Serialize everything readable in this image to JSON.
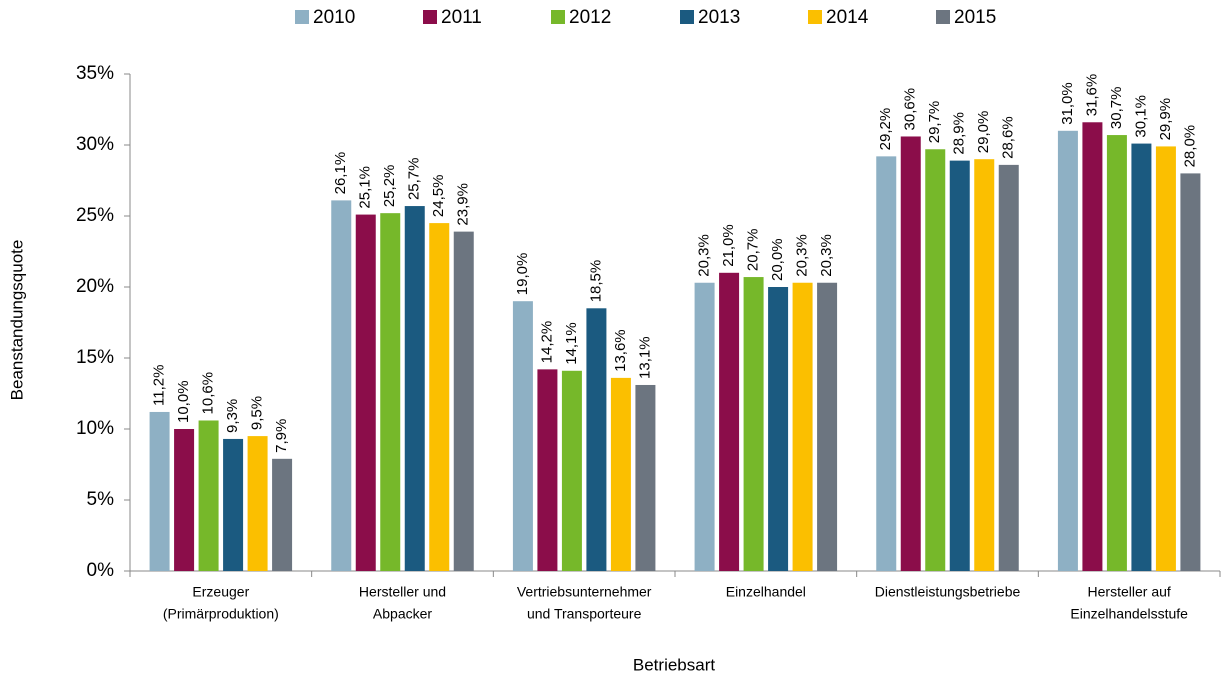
{
  "chart_data": {
    "type": "bar",
    "categories": [
      [
        "Erzeuger",
        "(Primärproduktion)"
      ],
      [
        "Hersteller und",
        "Abpacker"
      ],
      [
        "Vertriebsunternehmer",
        "und Transporteure"
      ],
      [
        "Einzelhandel"
      ],
      [
        "Dienstleistungsbetriebe"
      ],
      [
        "Hersteller auf",
        "Einzelhandelsstufe"
      ]
    ],
    "series": [
      {
        "name": "2010",
        "color": "#8eb0c4",
        "values": [
          11.2,
          26.1,
          19.0,
          20.3,
          29.2,
          31.0
        ],
        "value_labels": [
          "11,2%",
          "26,1%",
          "19,0%",
          "20,3%",
          "29,2%",
          "31,0%"
        ]
      },
      {
        "name": "2011",
        "color": "#8b0d4a",
        "values": [
          10.0,
          25.1,
          14.2,
          21.0,
          30.6,
          31.6
        ],
        "value_labels": [
          "10,0%",
          "25,1%",
          "14,2%",
          "21,0%",
          "30,6%",
          "31,6%"
        ]
      },
      {
        "name": "2012",
        "color": "#76b82a",
        "values": [
          10.6,
          25.2,
          14.1,
          20.7,
          29.7,
          30.7
        ],
        "value_labels": [
          "10,6%",
          "25,2%",
          "14,1%",
          "20,7%",
          "29,7%",
          "30,7%"
        ]
      },
      {
        "name": "2013",
        "color": "#1b5a80",
        "values": [
          9.3,
          25.7,
          18.5,
          20.0,
          28.9,
          30.1
        ],
        "value_labels": [
          "9,3%",
          "25,7%",
          "18,5%",
          "20,0%",
          "28,9%",
          "30,1%"
        ]
      },
      {
        "name": "2014",
        "color": "#fbbf00",
        "values": [
          9.5,
          24.5,
          13.6,
          20.3,
          29.0,
          29.9
        ],
        "value_labels": [
          "9,5%",
          "24,5%",
          "13,6%",
          "20,3%",
          "29,0%",
          "29,9%"
        ]
      },
      {
        "name": "2015",
        "color": "#6c7580",
        "values": [
          7.9,
          23.9,
          13.1,
          20.3,
          28.6,
          28.0
        ],
        "value_labels": [
          "7,9%",
          "23,9%",
          "13,1%",
          "20,3%",
          "28,6%",
          "28,0%"
        ]
      }
    ],
    "xlabel": "Betriebsart",
    "ylabel": "Beanstandungsquote",
    "ylim": [
      0,
      35
    ],
    "yticks": [
      {
        "value": 0,
        "label": "0%"
      },
      {
        "value": 5,
        "label": "5%"
      },
      {
        "value": 10,
        "label": "10%"
      },
      {
        "value": 15,
        "label": "15%"
      },
      {
        "value": 20,
        "label": "20%"
      },
      {
        "value": 25,
        "label": "25%"
      },
      {
        "value": 30,
        "label": "30%"
      },
      {
        "value": 35,
        "label": "35%"
      }
    ],
    "grid": false,
    "legend": "top"
  }
}
